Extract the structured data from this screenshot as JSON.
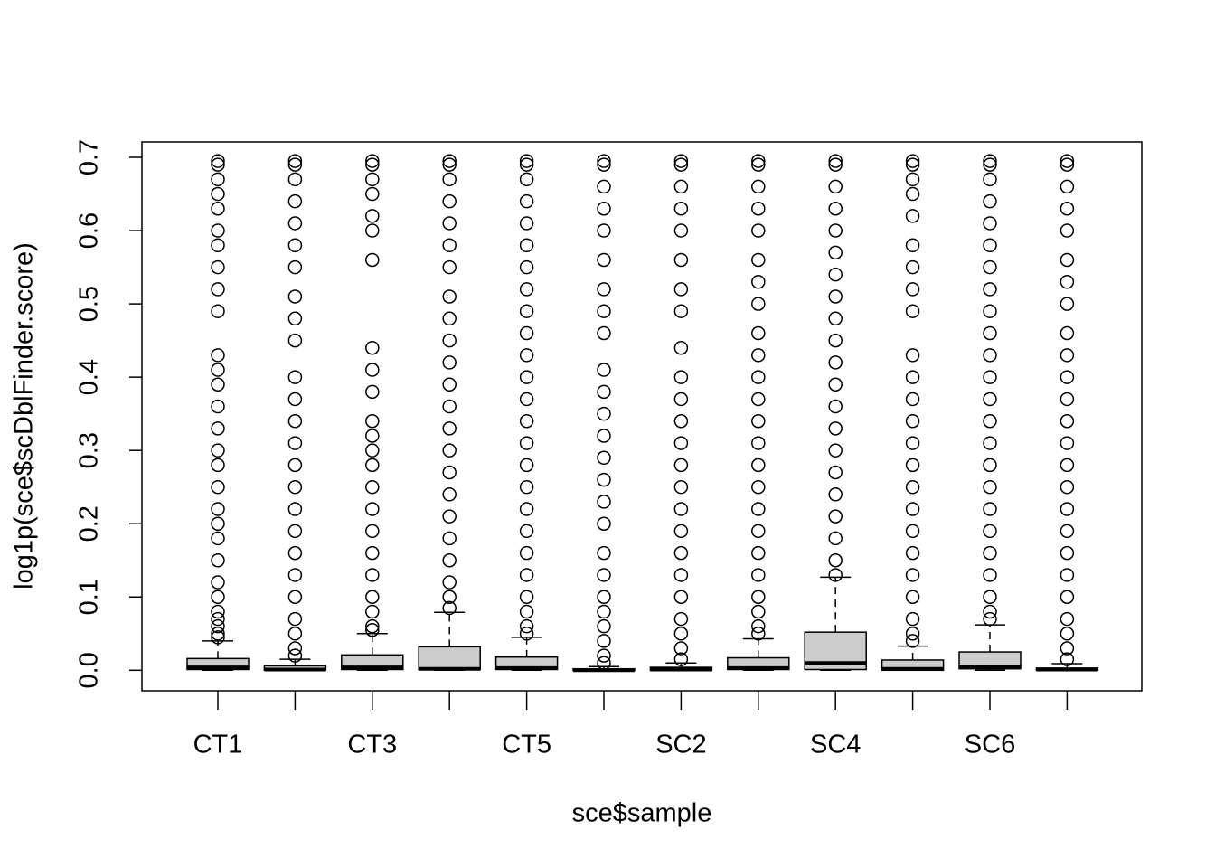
{
  "chart_data": {
    "type": "boxplot",
    "x_label": "sce$sample",
    "y_label": "log1p(sce$scDblFinder.score)",
    "categories": [
      "CT1",
      null,
      "CT3",
      null,
      "CT5",
      null,
      "SC2",
      null,
      "SC4",
      null,
      "SC6",
      null
    ],
    "color": "#cccccc",
    "ylim": [
      -0.028,
      0.721
    ],
    "yticks": [
      {
        "value": 0,
        "label": "0.0"
      },
      0.1,
      0.2,
      0.3,
      0.4,
      0.5,
      0.6,
      0.7
    ],
    "boxes": [
      {
        "min": 0,
        "q1": 0.001,
        "median": 0.004,
        "q3": 0.016,
        "max": 0.04,
        "outliers": [
          0.045,
          0.05,
          0.06,
          0.07,
          0.08,
          0.1,
          0.12,
          0.15,
          0.18,
          0.2,
          0.22,
          0.25,
          0.28,
          0.3,
          0.33,
          0.36,
          0.39,
          0.41,
          0.43,
          0.49,
          0.52,
          0.55,
          0.58,
          0.6,
          0.63,
          0.65,
          0.67,
          0.69,
          0.695
        ]
      },
      {
        "min": 0,
        "q1": 0,
        "median": 0.001,
        "q3": 0.006,
        "max": 0.015,
        "outliers": [
          0.02,
          0.03,
          0.05,
          0.07,
          0.1,
          0.13,
          0.16,
          0.19,
          0.22,
          0.25,
          0.28,
          0.31,
          0.34,
          0.37,
          0.4,
          0.45,
          0.48,
          0.51,
          0.55,
          0.58,
          0.61,
          0.64,
          0.67,
          0.69,
          0.695
        ]
      },
      {
        "min": 0,
        "q1": 0.001,
        "median": 0.004,
        "q3": 0.021,
        "max": 0.05,
        "outliers": [
          0.055,
          0.06,
          0.08,
          0.1,
          0.13,
          0.16,
          0.19,
          0.22,
          0.25,
          0.28,
          0.3,
          0.32,
          0.34,
          0.38,
          0.41,
          0.44,
          0.56,
          0.6,
          0.62,
          0.65,
          0.67,
          0.69,
          0.695
        ]
      },
      {
        "min": 0,
        "q1": 0.001,
        "median": 0.002,
        "q3": 0.032,
        "max": 0.079,
        "outliers": [
          0.085,
          0.1,
          0.12,
          0.15,
          0.18,
          0.21,
          0.24,
          0.27,
          0.3,
          0.33,
          0.36,
          0.39,
          0.42,
          0.45,
          0.48,
          0.51,
          0.55,
          0.58,
          0.61,
          0.64,
          0.67,
          0.69,
          0.695
        ]
      },
      {
        "min": 0,
        "q1": 0.001,
        "median": 0.003,
        "q3": 0.018,
        "max": 0.045,
        "outliers": [
          0.05,
          0.06,
          0.08,
          0.1,
          0.13,
          0.16,
          0.19,
          0.22,
          0.25,
          0.28,
          0.31,
          0.34,
          0.37,
          0.4,
          0.43,
          0.46,
          0.49,
          0.52,
          0.55,
          0.58,
          0.61,
          0.64,
          0.67,
          0.69,
          0.695
        ]
      },
      {
        "min": 0,
        "q1": 0,
        "median": 0,
        "q3": 0.002,
        "max": 0.005,
        "outliers": [
          0.01,
          0.02,
          0.04,
          0.06,
          0.08,
          0.1,
          0.13,
          0.16,
          0.2,
          0.23,
          0.26,
          0.29,
          0.32,
          0.35,
          0.38,
          0.41,
          0.46,
          0.49,
          0.52,
          0.56,
          0.6,
          0.63,
          0.66,
          0.69,
          0.695
        ]
      },
      {
        "min": 0,
        "q1": 0,
        "median": 0.001,
        "q3": 0.004,
        "max": 0.01,
        "outliers": [
          0.015,
          0.03,
          0.05,
          0.07,
          0.1,
          0.13,
          0.16,
          0.19,
          0.22,
          0.25,
          0.28,
          0.31,
          0.34,
          0.37,
          0.4,
          0.44,
          0.49,
          0.52,
          0.56,
          0.6,
          0.63,
          0.66,
          0.69,
          0.695
        ]
      },
      {
        "min": 0,
        "q1": 0.001,
        "median": 0.003,
        "q3": 0.017,
        "max": 0.043,
        "outliers": [
          0.05,
          0.06,
          0.08,
          0.1,
          0.13,
          0.16,
          0.19,
          0.22,
          0.25,
          0.28,
          0.31,
          0.34,
          0.37,
          0.4,
          0.43,
          0.46,
          0.5,
          0.53,
          0.56,
          0.6,
          0.63,
          0.66,
          0.69,
          0.695
        ]
      },
      {
        "min": 0,
        "q1": 0.001,
        "median": 0.01,
        "q3": 0.052,
        "max": 0.127,
        "outliers": [
          0.13,
          0.15,
          0.18,
          0.21,
          0.24,
          0.27,
          0.3,
          0.33,
          0.36,
          0.39,
          0.42,
          0.45,
          0.48,
          0.51,
          0.54,
          0.57,
          0.6,
          0.63,
          0.66,
          0.69,
          0.695
        ]
      },
      {
        "min": 0,
        "q1": 0,
        "median": 0.002,
        "q3": 0.014,
        "max": 0.033,
        "outliers": [
          0.04,
          0.05,
          0.07,
          0.1,
          0.13,
          0.16,
          0.19,
          0.22,
          0.25,
          0.28,
          0.31,
          0.34,
          0.37,
          0.4,
          0.43,
          0.49,
          0.52,
          0.55,
          0.58,
          0.62,
          0.65,
          0.67,
          0.69,
          0.695
        ]
      },
      {
        "min": 0,
        "q1": 0.002,
        "median": 0.005,
        "q3": 0.025,
        "max": 0.062,
        "outliers": [
          0.07,
          0.08,
          0.1,
          0.13,
          0.16,
          0.19,
          0.22,
          0.25,
          0.28,
          0.31,
          0.34,
          0.37,
          0.4,
          0.43,
          0.46,
          0.49,
          0.52,
          0.55,
          0.58,
          0.61,
          0.64,
          0.67,
          0.69,
          0.695
        ]
      },
      {
        "min": 0,
        "q1": 0,
        "median": 0.001,
        "q3": 0.003,
        "max": 0.009,
        "outliers": [
          0.015,
          0.03,
          0.05,
          0.07,
          0.1,
          0.13,
          0.16,
          0.19,
          0.22,
          0.25,
          0.28,
          0.31,
          0.34,
          0.37,
          0.4,
          0.43,
          0.46,
          0.5,
          0.53,
          0.56,
          0.6,
          0.63,
          0.66,
          0.69,
          0.695
        ]
      }
    ]
  }
}
